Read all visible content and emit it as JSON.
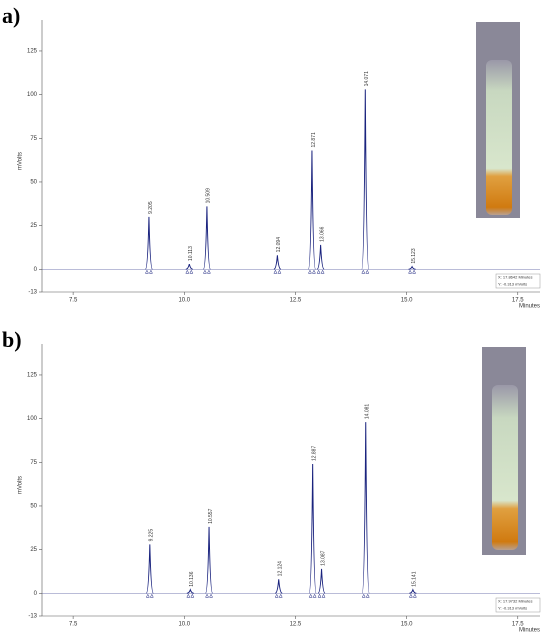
{
  "chart_data": [
    {
      "type": "line",
      "panel": "a)",
      "ylabel": "mVolts",
      "xlabel": "Minutes",
      "color": "#1a237e",
      "xlim": [
        6.8,
        18.0
      ],
      "ylim": [
        -13,
        137
      ],
      "xticks": [
        7.5,
        {
          "value": 10,
          "label": "10.0"
        },
        12.5,
        {
          "value": 15,
          "label": "15.0"
        },
        17.5
      ],
      "yticks": [
        -13,
        0,
        25,
        50,
        75,
        100,
        125
      ],
      "x": [
        9.205,
        10.113,
        10.509,
        12.094,
        12.871,
        13.066,
        14.071,
        15.123
      ],
      "values": [
        30,
        3,
        36,
        8,
        68,
        14,
        103,
        1.5
      ],
      "cursor": [
        "X: 17.8642 Minutes",
        "Y: -0.313 mVolts"
      ]
    },
    {
      "type": "line",
      "panel": "b)",
      "ylabel": "mVolts",
      "xlabel": "Minutes",
      "color": "#1a237e",
      "xlim": [
        6.8,
        18.0
      ],
      "ylim": [
        -13,
        137
      ],
      "xticks": [
        7.5,
        {
          "value": 10,
          "label": "10.0"
        },
        12.5,
        {
          "value": 15,
          "label": "15.0"
        },
        17.5
      ],
      "yticks": [
        -13,
        0,
        25,
        50,
        75,
        100,
        125
      ],
      "x": [
        9.225,
        10.136,
        10.557,
        12.124,
        12.887,
        13.087,
        14.081,
        15.141
      ],
      "values": [
        28,
        2,
        38,
        8,
        74,
        14,
        98,
        2
      ],
      "cursor": [
        "X: 17.9732 Minutes",
        "Y: -0.313 mVolts"
      ]
    }
  ]
}
